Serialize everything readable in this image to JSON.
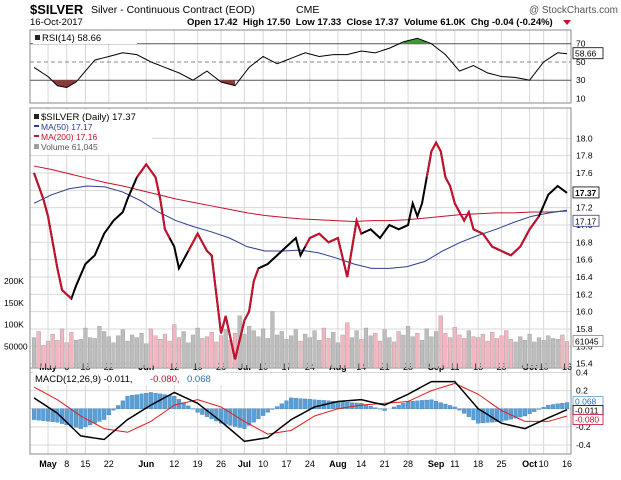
{
  "header": {
    "symbol": "$SILVER",
    "name": "Silver - Continuous Contract (EOD)",
    "exchange": "CME",
    "date": "16-Oct-2017",
    "ohlc": "Open 17.42  High 17.50  Low 17.33  Close 17.37  Volume 61.0K  Chg -0.04 (-0.24%)",
    "watermark": "@ StockCharts.com"
  },
  "colors": {
    "price": "#000000",
    "price_down": "#c8102e",
    "ma50": "#2c3e91",
    "ma200": "#c8102e",
    "vol_up": "#bdbdbd",
    "vol_down": "#f1b6bf",
    "rsi_pos": "#3a9a3a",
    "rsi_neg": "#8b3a3a",
    "macd_hist": "#5a9fd4",
    "signal": "#e31a1c",
    "grid": "#d8d8d8"
  },
  "chart_data": [
    {
      "type": "line",
      "panel": "RSI",
      "legend": "RSI(14) 58.66",
      "ylim": [
        5,
        85
      ],
      "ticks": [
        "70",
        "50",
        "30",
        "10"
      ],
      "levels": [
        70,
        50,
        30
      ],
      "last_label": "58.66",
      "x": [
        0,
        3,
        5,
        7,
        9,
        11,
        13,
        16,
        19,
        22,
        25,
        28,
        31,
        34,
        37,
        40,
        43,
        46,
        49,
        52,
        55,
        58,
        61,
        64,
        67,
        70,
        73,
        76,
        79,
        82,
        85,
        88,
        91,
        94,
        97,
        100,
        103,
        106,
        109,
        112,
        114
      ],
      "values": [
        44,
        34,
        24,
        22,
        28,
        40,
        52,
        56,
        60,
        58,
        50,
        44,
        38,
        30,
        40,
        28,
        24,
        44,
        56,
        48,
        54,
        60,
        56,
        58,
        58,
        62,
        60,
        65,
        72,
        76,
        70,
        58,
        40,
        46,
        38,
        34,
        33,
        30,
        50,
        60,
        59
      ]
    },
    {
      "type": "line",
      "panel": "Price",
      "legend": {
        "price": "$SILVER (Daily) 17.37",
        "ma50": "MA(50) 17.17",
        "ma200": "MA(200) 17.16",
        "volume": "Volume 61,045"
      },
      "ylim": [
        15.35,
        18.35
      ],
      "yticks": [
        18.0,
        17.8,
        17.6,
        17.4,
        17.2,
        17.0,
        16.8,
        16.6,
        16.4,
        16.2,
        16.0,
        15.8,
        15.6,
        15.4
      ],
      "ytick_labels": [
        "18.0",
        "17.8",
        "17.6",
        "17.4",
        "17.2",
        "17.0",
        "16.8",
        "16.6",
        "16.4",
        "16.2",
        "16.0",
        "15.8",
        "15.6",
        "15.4"
      ],
      "last_labels": {
        "price": "17.37",
        "ma": "17.17"
      },
      "x": [
        0,
        2,
        3,
        5,
        6,
        8,
        9,
        11,
        13,
        15,
        17,
        19,
        20,
        22,
        24,
        26,
        27,
        28,
        30,
        31,
        33,
        35,
        37,
        38,
        40,
        41,
        43,
        45,
        46,
        47,
        48,
        50,
        52,
        54,
        56,
        57,
        59,
        61,
        63,
        65,
        67,
        69,
        70,
        72,
        74,
        76,
        78,
        80,
        81,
        82,
        83,
        84,
        85,
        86,
        87,
        88,
        89,
        90,
        92,
        93,
        94,
        96,
        98,
        100,
        102,
        104,
        106,
        108,
        110,
        112,
        114
      ],
      "values": [
        17.6,
        17.3,
        17.1,
        16.5,
        16.25,
        16.15,
        16.3,
        16.55,
        16.65,
        16.9,
        17.05,
        17.15,
        17.3,
        17.55,
        17.7,
        17.55,
        17.3,
        16.95,
        16.75,
        16.5,
        16.7,
        16.9,
        16.7,
        16.65,
        15.75,
        15.95,
        15.45,
        15.9,
        16.0,
        16.35,
        16.5,
        16.55,
        16.65,
        16.75,
        16.85,
        16.65,
        16.85,
        16.9,
        16.8,
        16.85,
        16.4,
        17.05,
        16.9,
        16.95,
        16.85,
        17.0,
        16.95,
        17.0,
        17.25,
        17.1,
        17.25,
        17.55,
        17.85,
        17.95,
        17.85,
        17.55,
        17.45,
        17.25,
        17.05,
        17.15,
        16.95,
        16.9,
        16.75,
        16.7,
        16.65,
        16.75,
        16.95,
        17.1,
        17.35,
        17.45,
        17.37
      ],
      "down_segments": [
        [
          0,
          8
        ],
        [
          22,
          29
        ],
        [
          33,
          48
        ],
        [
          58,
          70
        ],
        [
          84,
          108
        ]
      ],
      "ma50": [
        17.25,
        17.35,
        17.42,
        17.45,
        17.44,
        17.38,
        17.28,
        17.15,
        17.05,
        16.98,
        16.92,
        16.85,
        16.75,
        16.7,
        16.7,
        16.71,
        16.68,
        16.62,
        16.55,
        16.5,
        16.5,
        16.52,
        16.58,
        16.7,
        16.8,
        16.88,
        16.95,
        17.03,
        17.1,
        17.14,
        17.17
      ],
      "ma200": [
        17.68,
        17.64,
        17.59,
        17.54,
        17.49,
        17.45,
        17.4,
        17.35,
        17.3,
        17.26,
        17.22,
        17.18,
        17.14,
        17.11,
        17.09,
        17.07,
        17.06,
        17.05,
        17.04,
        17.05,
        17.05,
        17.06,
        17.08,
        17.1,
        17.12,
        17.13,
        17.14,
        17.14,
        17.15,
        17.15,
        17.16
      ]
    },
    {
      "type": "bar",
      "panel": "Volume",
      "yticks": [
        200000,
        150000,
        100000,
        50000
      ],
      "ytick_labels": [
        "200K",
        "150K",
        "100K",
        "50000"
      ],
      "last_label": "61045",
      "values": [
        70000,
        84000,
        52000,
        62000,
        78000,
        64000,
        90000,
        58000,
        82000,
        64000,
        66000,
        92000,
        70000,
        68000,
        96000,
        84000,
        72000,
        58000,
        74000,
        88000,
        62000,
        76000,
        70000,
        80000,
        56000,
        90000,
        74000,
        66000,
        78000,
        62000,
        100000,
        70000,
        84000,
        58000,
        76000,
        92000,
        68000,
        72000,
        82000,
        60000,
        74000,
        88000,
        64000,
        80000,
        120000,
        78000,
        96000,
        86000,
        72000,
        90000,
        68000,
        130000,
        76000,
        84000,
        66000,
        74000,
        88000,
        62000,
        78000,
        70000,
        86000,
        64000,
        92000,
        68000,
        82000,
        58000,
        76000,
        104000,
        70000,
        86000,
        66000,
        92000,
        74000,
        80000,
        62000,
        88000,
        70000,
        60000,
        84000,
        76000,
        96000,
        72000,
        80000,
        64000,
        90000,
        72000,
        84000,
        120000,
        80000,
        70000,
        94000,
        76000,
        68000,
        86000,
        72000,
        70000,
        78000,
        62000,
        82000,
        68000,
        74000,
        86000,
        66000,
        60000,
        72000,
        64000,
        78000,
        60000,
        70000,
        64000,
        74000,
        68000,
        66000,
        76000,
        61045
      ]
    },
    {
      "type": "line",
      "panel": "MACD",
      "legend": {
        "macd": "MACD(12,26,9) -0.011,",
        "signal": "-0.080,",
        "hist": "0.068"
      },
      "ylim": [
        -0.5,
        0.45
      ],
      "yticks": [
        0.4,
        0.2,
        0.0,
        -0.2,
        -0.4
      ],
      "ytick_labels": [
        "0.4",
        "0.2",
        "0.0",
        "-0.2",
        "-0.4"
      ],
      "last_labels": {
        "hist": "0.068",
        "macd": "-0.011",
        "signal": "-0.080"
      },
      "x": [
        0,
        5,
        10,
        15,
        20,
        25,
        30,
        35,
        40,
        45,
        50,
        55,
        60,
        65,
        70,
        75,
        80,
        85,
        90,
        95,
        100,
        105,
        110,
        114
      ],
      "macd": [
        0.12,
        -0.05,
        -0.3,
        -0.34,
        -0.12,
        0.04,
        0.18,
        0.06,
        -0.14,
        -0.36,
        -0.32,
        -0.12,
        0.02,
        0.08,
        0.1,
        0.04,
        0.16,
        0.3,
        0.3,
        0.0,
        -0.16,
        -0.22,
        -0.1,
        -0.011
      ],
      "signal": [
        0.24,
        0.1,
        -0.08,
        -0.22,
        -0.26,
        -0.14,
        0.04,
        0.1,
        0.02,
        -0.14,
        -0.28,
        -0.24,
        -0.08,
        0.0,
        0.04,
        0.06,
        0.08,
        0.2,
        0.28,
        0.16,
        -0.02,
        -0.14,
        -0.14,
        -0.08
      ]
    }
  ],
  "x_axis": {
    "total_points": 115,
    "labels": [
      {
        "text": "May",
        "x": 3,
        "bold": true
      },
      {
        "text": "8",
        "x": 7,
        "bold": false
      },
      {
        "text": "15",
        "x": 11,
        "bold": false
      },
      {
        "text": "22",
        "x": 16,
        "bold": false
      },
      {
        "text": "Jun",
        "x": 24,
        "bold": true
      },
      {
        "text": "12",
        "x": 30,
        "bold": false
      },
      {
        "text": "19",
        "x": 35,
        "bold": false
      },
      {
        "text": "26",
        "x": 40,
        "bold": false
      },
      {
        "text": "Jul",
        "x": 45,
        "bold": true
      },
      {
        "text": "10",
        "x": 49,
        "bold": false
      },
      {
        "text": "17",
        "x": 54,
        "bold": false
      },
      {
        "text": "24",
        "x": 59,
        "bold": false
      },
      {
        "text": "Aug",
        "x": 65,
        "bold": true
      },
      {
        "text": "14",
        "x": 70,
        "bold": false
      },
      {
        "text": "21",
        "x": 75,
        "bold": false
      },
      {
        "text": "28",
        "x": 80,
        "bold": false
      },
      {
        "text": "Sep",
        "x": 86,
        "bold": true
      },
      {
        "text": "11",
        "x": 90,
        "bold": false
      },
      {
        "text": "18",
        "x": 95,
        "bold": false
      },
      {
        "text": "25",
        "x": 100,
        "bold": false
      },
      {
        "text": "Oct",
        "x": 106,
        "bold": true
      },
      {
        "text": "10",
        "x": 109,
        "bold": false
      },
      {
        "text": "16",
        "x": 114,
        "bold": false
      }
    ]
  }
}
